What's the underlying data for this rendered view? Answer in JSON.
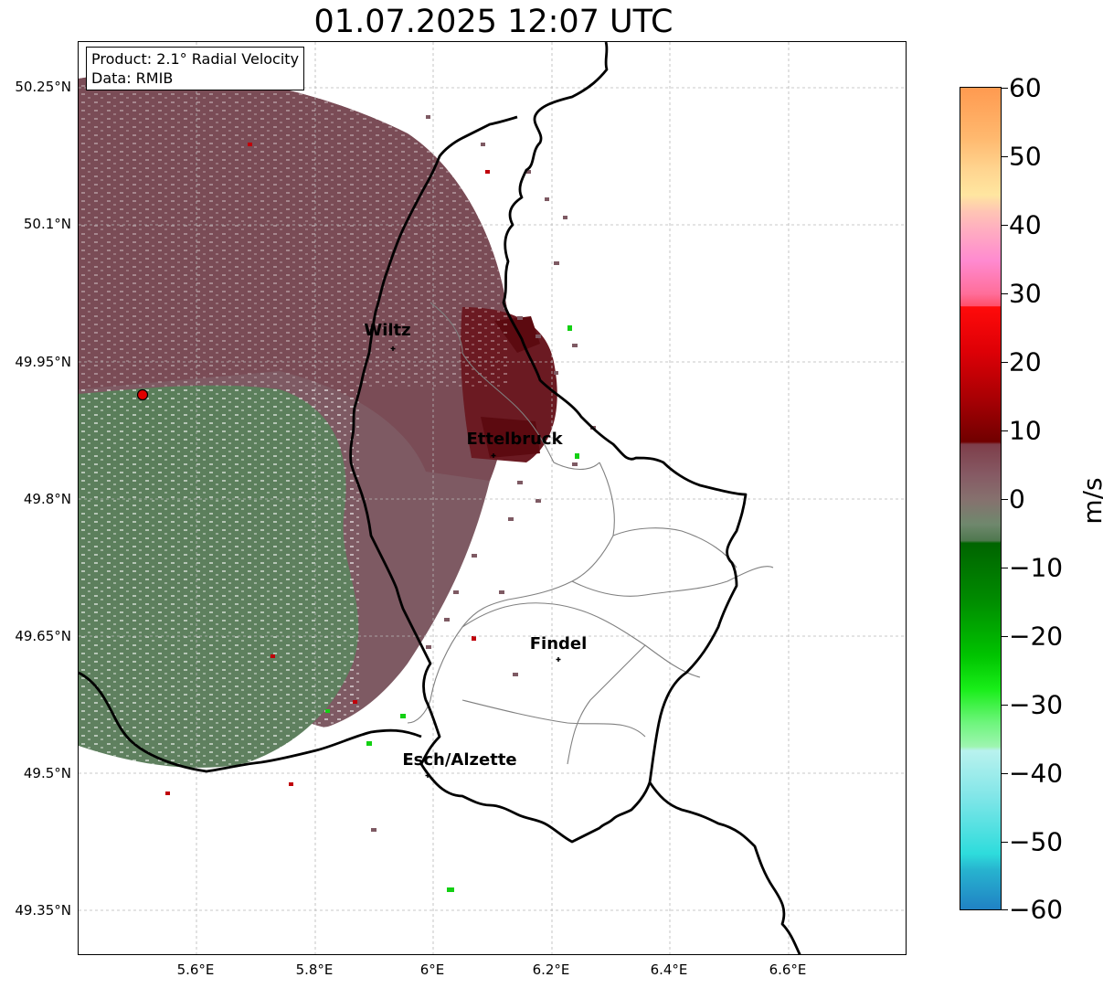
{
  "title": "01.07.2025 12:07 UTC",
  "info": {
    "product": "Product: 2.1° Radial Velocity",
    "source": "Data: RMIB"
  },
  "y_ticks": [
    "50.25°N",
    "50.1°N",
    "49.95°N",
    "49.8°N",
    "49.65°N",
    "49.5°N",
    "49.35°N"
  ],
  "x_ticks": [
    "5.6°E",
    "5.8°E",
    "6°E",
    "6.2°E",
    "6.4°E",
    "6.6°E"
  ],
  "cities": [
    {
      "name": "Wiltz"
    },
    {
      "name": "Ettelbruck"
    },
    {
      "name": "Findel"
    },
    {
      "name": "Esch/Alzette"
    }
  ],
  "colorbar": {
    "unit": "m/s",
    "ticks": [
      "60",
      "50",
      "40",
      "30",
      "20",
      "10",
      "0",
      "−10",
      "−20",
      "−30",
      "−40",
      "−50",
      "−60"
    ],
    "min": -60,
    "max": 60
  },
  "chart_data": {
    "type": "heatmap",
    "title": "01.07.2025 12:07 UTC",
    "xlabel": "",
    "ylabel": "",
    "xlim": [
      5.4,
      6.8
    ],
    "ylim": [
      49.3,
      50.3
    ],
    "xticks": [
      5.6,
      5.8,
      6.0,
      6.2,
      6.4,
      6.6
    ],
    "yticks": [
      49.35,
      49.5,
      49.65,
      49.8,
      49.95,
      50.1,
      50.25
    ],
    "grid": true,
    "radar_site": {
      "lon": 5.505,
      "lat": 49.915
    },
    "cities": [
      {
        "name": "Wiltz",
        "lon": 5.93,
        "lat": 49.966
      },
      {
        "name": "Ettelbruck",
        "lon": 6.1,
        "lat": 49.847
      },
      {
        "name": "Findel",
        "lon": 6.21,
        "lat": 49.626
      },
      {
        "name": "Esch/Alzette",
        "lon": 5.99,
        "lat": 49.498
      }
    ],
    "colorbar_range": [
      -60,
      60
    ],
    "colorbar_label": "m/s"
  }
}
